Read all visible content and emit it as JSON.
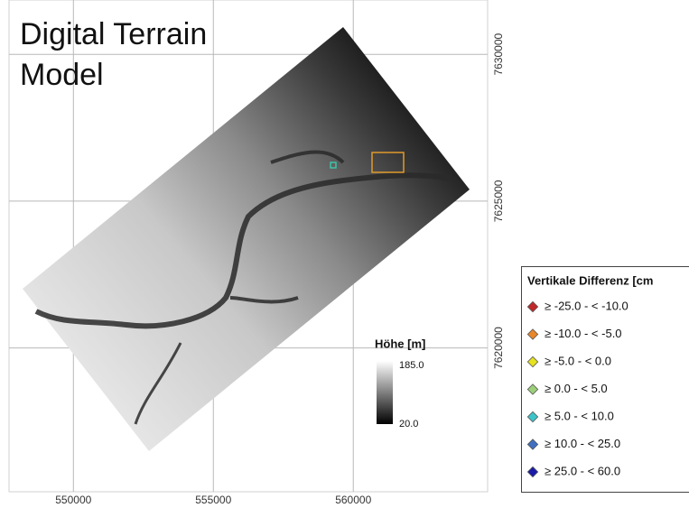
{
  "map": {
    "title_lines": [
      "Digital Terrain",
      "Model"
    ],
    "xlim": [
      547700,
      564800
    ],
    "ylim": [
      7615100,
      7631850
    ],
    "xticks": [
      550000,
      555000,
      560000
    ],
    "yticks": [
      7630000,
      7625000,
      7620000
    ],
    "elevation_legend": {
      "title": "Höhe [m]",
      "max_label": "185.0",
      "min_label": "20.0"
    },
    "difference_legend": {
      "title": "Vertikale Differenz [cm",
      "entries": [
        {
          "label": "≥ -25.0 - < -10.0",
          "color": "#c0282a"
        },
        {
          "label": "≥ -10.0 - < -5.0",
          "color": "#e8862a"
        },
        {
          "label": "≥ -5.0 - < 0.0",
          "color": "#e6e21e"
        },
        {
          "label": "≥ 0.0 - < 5.0",
          "color": "#9ccf7a"
        },
        {
          "label": "≥ 5.0 - < 10.0",
          "color": "#3cc4c8"
        },
        {
          "label": "≥ 10.0 - < 25.0",
          "color": "#3e6fc0"
        },
        {
          "label": "≥ 25.0 - < 60.0",
          "color": "#1a1aa8"
        }
      ]
    }
  }
}
